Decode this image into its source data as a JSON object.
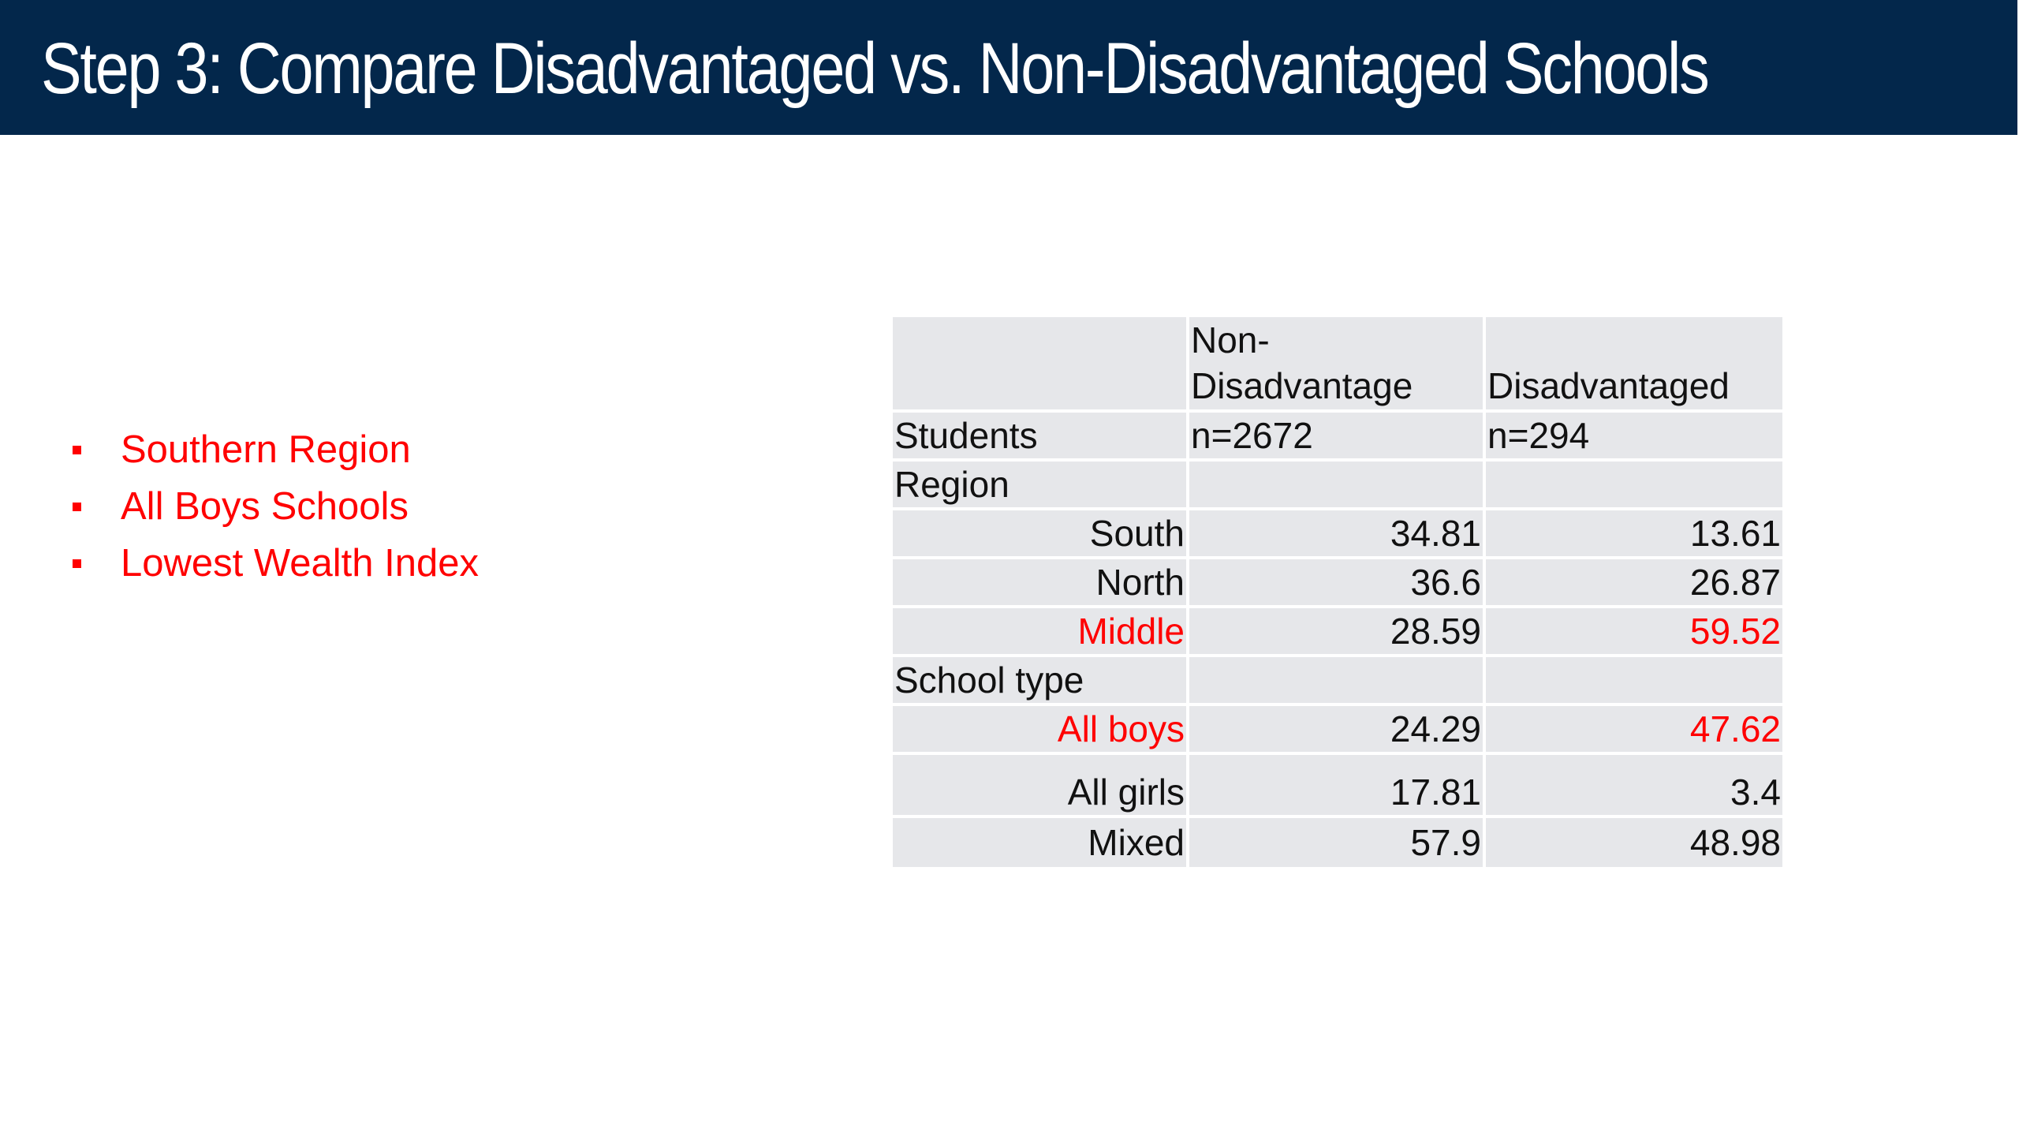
{
  "title": "Step 3: Compare Disadvantaged vs. Non-Disadvantaged Schools",
  "colors": {
    "title_bar": "#03274b",
    "title_text": "#ffffff",
    "highlight": "#ff0000",
    "table_cell": "#e6e7ea"
  },
  "bullets": [
    {
      "text": "Southern Region",
      "icon": "square-bullet-icon"
    },
    {
      "text": "All Boys Schools",
      "icon": "square-bullet-icon"
    },
    {
      "text": "Lowest Wealth Index",
      "icon": "square-bullet-icon"
    }
  ],
  "table": {
    "header": {
      "label": "",
      "non_disadvantage_line1": "Non-",
      "non_disadvantage_line2": "Disadvantage",
      "disadvantaged": "Disadvantaged"
    },
    "rows": [
      {
        "label": "Students",
        "non_disadvantage": "n=2672",
        "disadvantaged": "n=294",
        "kind": "section",
        "highlight": false
      },
      {
        "label": "Region",
        "non_disadvantage": "",
        "disadvantaged": "",
        "kind": "section",
        "highlight": false
      },
      {
        "label": "South",
        "non_disadvantage": "34.81",
        "disadvantaged": "13.61",
        "kind": "value",
        "highlight": false
      },
      {
        "label": "North",
        "non_disadvantage": "36.6",
        "disadvantaged": "26.87",
        "kind": "value",
        "highlight": false
      },
      {
        "label": "Middle",
        "non_disadvantage": "28.59",
        "disadvantaged": "59.52",
        "kind": "value",
        "highlight": true
      },
      {
        "label": "School type",
        "non_disadvantage": "",
        "disadvantaged": "",
        "kind": "section",
        "highlight": false
      },
      {
        "label": "All boys",
        "non_disadvantage": "24.29",
        "disadvantaged": "47.62",
        "kind": "value",
        "highlight": true
      },
      {
        "label": "All girls",
        "non_disadvantage": "17.81",
        "disadvantaged": "3.4",
        "kind": "value",
        "highlight": false
      },
      {
        "label": "Mixed",
        "non_disadvantage": "57.9",
        "disadvantaged": "48.98",
        "kind": "value",
        "highlight": false
      }
    ]
  }
}
